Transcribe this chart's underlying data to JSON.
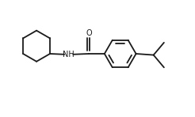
{
  "background_color": "#ffffff",
  "line_color": "#1a1a1a",
  "line_width": 1.3,
  "font_size_nh": 7.0,
  "font_size_o": 7.0,
  "figsize": [
    2.46,
    1.48
  ],
  "dpi": 100,
  "xlim": [
    0.0,
    6.2
  ],
  "ylim": [
    -1.2,
    2.5
  ]
}
